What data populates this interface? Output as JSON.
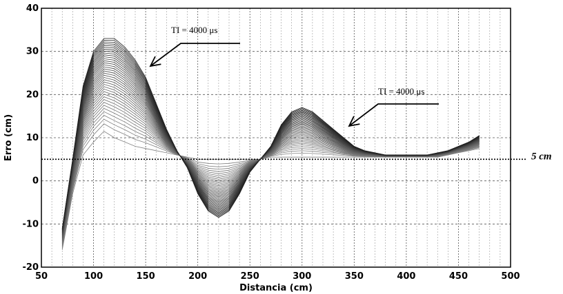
{
  "chart_data": {
    "type": "line",
    "xlabel": "Distancia (cm)",
    "ylabel": "Erro (cm)",
    "xlim": [
      50,
      500
    ],
    "ylim": [
      -20,
      40
    ],
    "xticks": [
      "50",
      "100",
      "150",
      "200",
      "250",
      "300",
      "350",
      "400",
      "450",
      "500"
    ],
    "yticks": [
      "-20",
      "-10",
      "0",
      "10",
      "20",
      "30",
      "40"
    ],
    "grid": true,
    "x": [
      70,
      80,
      90,
      100,
      110,
      120,
      130,
      140,
      150,
      160,
      170,
      180,
      190,
      200,
      210,
      220,
      230,
      240,
      250,
      260,
      270,
      280,
      290,
      300,
      310,
      320,
      330,
      340,
      350,
      360,
      370,
      380,
      390,
      400,
      410,
      420,
      430,
      440,
      450,
      460,
      470
    ],
    "series": [
      {
        "values": [
          -16,
          -3,
          6,
          9,
          11.5,
          10,
          9,
          8,
          7.5,
          7,
          6.5,
          6,
          5.5,
          5,
          5,
          5,
          5,
          5,
          5,
          5,
          5.5,
          5.5,
          5.5,
          5.5,
          5.5,
          5.5,
          5.5,
          5.5,
          5.5,
          5.5,
          5.5,
          5.5,
          5.5,
          5.5,
          5.5,
          5.5,
          5.5,
          6,
          6.5,
          7,
          7.5
        ]
      },
      {
        "values": [
          -11,
          5,
          22,
          30,
          33,
          33,
          31,
          28,
          24,
          18,
          12,
          7,
          3,
          -3,
          -7,
          -8.5,
          -7,
          -3,
          2,
          5,
          8,
          13,
          16,
          17,
          16,
          14,
          12,
          10,
          8,
          7,
          6.5,
          6,
          6,
          6,
          6,
          6,
          6.5,
          7,
          8,
          9,
          10.5
        ]
      }
    ],
    "annotations": [
      {
        "text": "TI = 4000 μs",
        "x": 155,
        "y": 34
      },
      {
        "text": "TI = 4000 μs",
        "x": 345,
        "y": 20
      }
    ],
    "reference_line": {
      "y": 5,
      "label": "5 cm"
    }
  }
}
